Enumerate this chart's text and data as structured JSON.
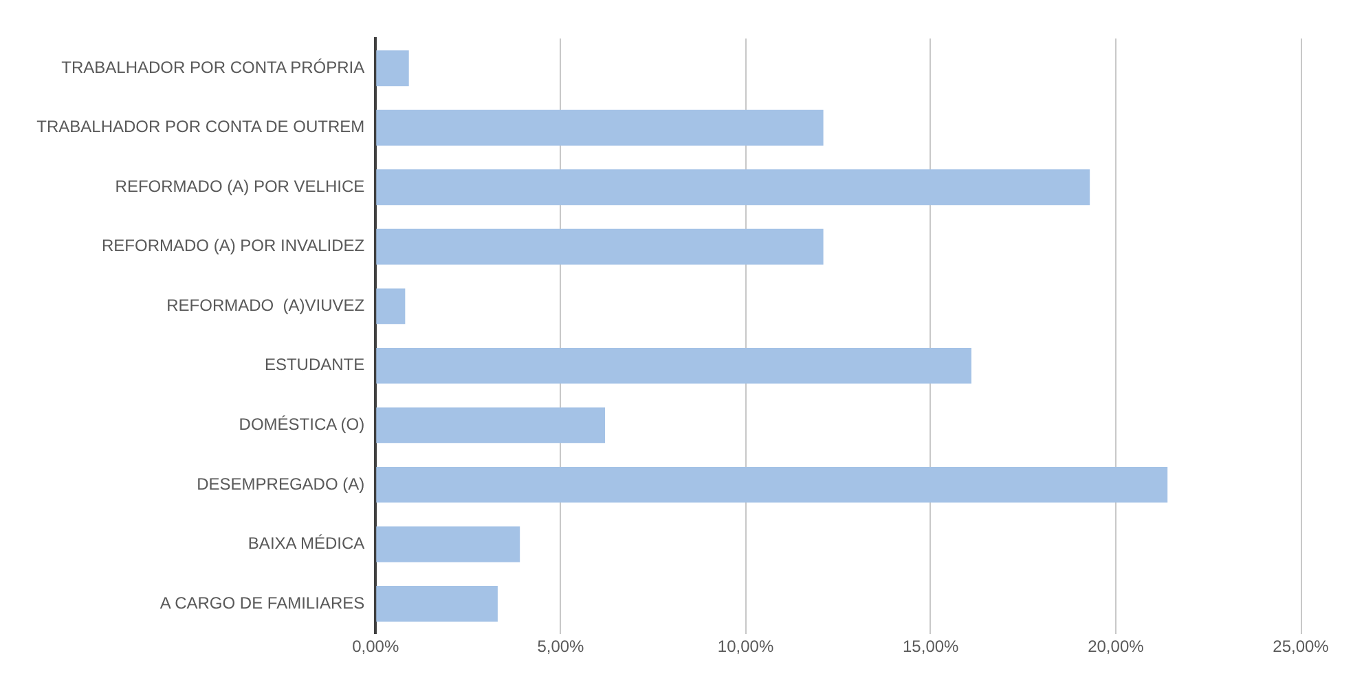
{
  "chart_data": {
    "type": "bar",
    "orientation": "horizontal",
    "categories": [
      "TRABALHADOR POR CONTA PRÓPRIA",
      "TRABALHADOR POR CONTA DE OUTREM",
      "REFORMADO (A) POR VELHICE",
      "REFORMADO (A) POR INVALIDEZ",
      "REFORMADO  (A)VIUVEZ",
      "ESTUDANTE",
      "DOMÉSTICA (O)",
      "DESEMPREGADO (A)",
      "BAIXA MÉDICA",
      "A CARGO DE FAMILIARES"
    ],
    "values": [
      0.9,
      12.1,
      19.3,
      12.1,
      0.8,
      16.1,
      6.2,
      21.4,
      3.9,
      3.3
    ],
    "color": "#a4c2e6",
    "xlim": [
      0,
      25
    ],
    "xticks": [
      {
        "value": 0,
        "label": "0,00%"
      },
      {
        "value": 5,
        "label": "5,00%"
      },
      {
        "value": 10,
        "label": "10,00%"
      },
      {
        "value": 15,
        "label": "15,00%"
      },
      {
        "value": 20,
        "label": "20,00%"
      },
      {
        "value": 25,
        "label": "25,00%"
      }
    ],
    "grid": "x"
  }
}
